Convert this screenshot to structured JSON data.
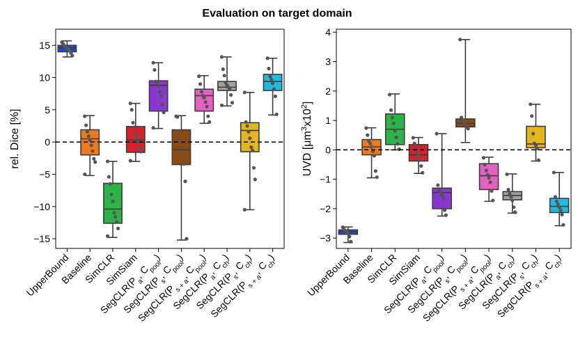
{
  "suptitle": "Evaluation on target domain",
  "chart_data": [
    {
      "type": "box",
      "title": "",
      "xlabel": "",
      "ylabel": "rel. Dice [%]",
      "ylim": [
        -16.5,
        17.5
      ],
      "yticks": [
        -15,
        -10,
        -5,
        0,
        5,
        10,
        15
      ],
      "ytick_labels": [
        "−15",
        "−10",
        "−5",
        "0",
        "5",
        "10",
        "15"
      ],
      "reference_line": 0,
      "categories": [
        {
          "main": "UpperBound",
          "sub": "",
          "sep": "",
          "sub2": "",
          "tail": ""
        },
        {
          "main": "Baseline",
          "sub": "",
          "sep": "",
          "sub2": "",
          "tail": ""
        },
        {
          "main": "SimCLR",
          "sub": "",
          "sep": "",
          "sub2": "",
          "tail": ""
        },
        {
          "main": "SimSiam",
          "sub": "",
          "sep": "",
          "sub2": "",
          "tail": ""
        },
        {
          "main": "SegCLR(P",
          "sub": "a",
          "sep": ", C",
          "sub2": "pool",
          "tail": ")"
        },
        {
          "main": "SegCLR(P",
          "sub": "s",
          "sep": ", C",
          "sub2": "pool",
          "tail": ")"
        },
        {
          "main": "SegCLR(P",
          "sub": "s + a",
          "sep": ", C",
          "sub2": "pool",
          "tail": ")"
        },
        {
          "main": "SegCLR(P",
          "sub": "a",
          "sep": ", C",
          "sub2": "ch",
          "tail": ")"
        },
        {
          "main": "SegCLR(P",
          "sub": "s",
          "sep": ", C",
          "sub2": "ch",
          "tail": ")"
        },
        {
          "main": "SegCLR(P",
          "sub": "s + a",
          "sep": ", C",
          "sub2": "ch",
          "tail": ")"
        }
      ],
      "colors": [
        "#2246c8",
        "#ef7a1d",
        "#2bb447",
        "#d8202a",
        "#8a36d2",
        "#8c4a10",
        "#e660c4",
        "#a0a0a0",
        "#e3b520",
        "#1dbce0"
      ],
      "boxes": [
        {
          "min": 13.2,
          "q1": 14.0,
          "median": 14.6,
          "q3": 15.0,
          "max": 15.7,
          "points": [
            15.5,
            15.2,
            14.9,
            14.7,
            14.6,
            14.4,
            14.2,
            13.8,
            13.4
          ]
        },
        {
          "min": -5.2,
          "q1": -2.0,
          "median": 0.5,
          "q3": 1.9,
          "max": 4.1,
          "points": [
            4.0,
            2.6,
            1.6,
            0.9,
            0.3,
            -0.5,
            -1.4,
            -2.6,
            -3.1,
            -5.0
          ]
        },
        {
          "min": -14.8,
          "q1": -12.6,
          "median": -10.4,
          "q3": -6.4,
          "max": -3.0,
          "points": [
            -3.0,
            -5.4,
            -6.5,
            -8.1,
            -9.2,
            -11.0,
            -11.6,
            -12.4,
            -13.4,
            -14.6
          ]
        },
        {
          "min": -3.0,
          "q1": -1.6,
          "median": 0.3,
          "q3": 2.4,
          "max": 6.0,
          "points": [
            6.0,
            5.0,
            3.0,
            2.3,
            1.2,
            0.6,
            0.0,
            -1.0,
            -1.5,
            -2.9
          ]
        },
        {
          "min": 2.1,
          "q1": 4.8,
          "median": 8.8,
          "q3": 9.5,
          "max": 12.3,
          "points": [
            12.3,
            11.2,
            9.4,
            9.1,
            8.6,
            7.8,
            7.1,
            5.8,
            4.6,
            2.2
          ]
        },
        {
          "min": -15.2,
          "q1": -3.5,
          "median": -1.2,
          "q3": 1.9,
          "max": 4.1,
          "points": [
            4.0,
            3.9,
            1.7,
            0.3,
            -0.9,
            -1.8,
            -3.4,
            -6.1,
            -15.0
          ]
        },
        {
          "min": 2.9,
          "q1": 4.8,
          "median": 7.2,
          "q3": 8.2,
          "max": 10.3,
          "points": [
            10.2,
            9.0,
            7.8,
            7.2,
            6.9,
            6.2,
            5.5,
            4.0,
            3.1
          ]
        },
        {
          "min": 5.6,
          "q1": 8.0,
          "median": 8.5,
          "q3": 9.4,
          "max": 13.2,
          "points": [
            13.2,
            11.3,
            10.3,
            9.2,
            8.8,
            8.5,
            8.3,
            7.3,
            6.1,
            5.7
          ]
        },
        {
          "min": -10.5,
          "q1": -1.5,
          "median": 1.8,
          "q3": 3.0,
          "max": 7.7,
          "points": [
            7.7,
            3.1,
            2.5,
            1.6,
            0.6,
            -0.8,
            -1.3,
            -4.0,
            -5.8,
            -10.5
          ]
        },
        {
          "min": 4.2,
          "q1": 8.0,
          "median": 9.4,
          "q3": 10.5,
          "max": 13.0,
          "points": [
            13.0,
            11.4,
            10.2,
            9.7,
            9.1,
            8.2,
            7.1,
            4.3
          ]
        }
      ]
    },
    {
      "type": "box",
      "title": "",
      "xlabel": "",
      "ylabel": "UVD [μm³x10²]",
      "ylabel_parts": {
        "main": "UVD [μm",
        "sup1": "3",
        "mid": "x10",
        "sup2": "2",
        "tail": "]"
      },
      "ylim": [
        -3.35,
        4.1
      ],
      "yticks": [
        -3,
        -2,
        -1,
        0,
        1,
        2,
        3,
        4
      ],
      "ytick_labels": [
        "−3",
        "−2",
        "−1",
        "0",
        "1",
        "2",
        "3",
        "4"
      ],
      "reference_line": 0,
      "categories": [
        {
          "main": "UpperBound",
          "sub": "",
          "sep": "",
          "sub2": "",
          "tail": ""
        },
        {
          "main": "Baseline",
          "sub": "",
          "sep": "",
          "sub2": "",
          "tail": ""
        },
        {
          "main": "SimCLR",
          "sub": "",
          "sep": "",
          "sub2": "",
          "tail": ""
        },
        {
          "main": "SimSiam",
          "sub": "",
          "sep": "",
          "sub2": "",
          "tail": ""
        },
        {
          "main": "SegCLR(P",
          "sub": "a",
          "sep": ", C",
          "sub2": "pool",
          "tail": ")"
        },
        {
          "main": "SegCLR(P",
          "sub": "s",
          "sep": ", C",
          "sub2": "pool",
          "tail": ")"
        },
        {
          "main": "SegCLR(P",
          "sub": "s + a",
          "sep": ", C",
          "sub2": "pool",
          "tail": ")"
        },
        {
          "main": "SegCLR(P",
          "sub": "a",
          "sep": ", C",
          "sub2": "ch",
          "tail": ")"
        },
        {
          "main": "SegCLR(P",
          "sub": "s",
          "sep": ", C",
          "sub2": "ch",
          "tail": ")"
        },
        {
          "main": "SegCLR(P",
          "sub": "s + a",
          "sep": ", C",
          "sub2": "ch",
          "tail": ")"
        }
      ],
      "colors": [
        "#2246c8",
        "#ef7a1d",
        "#2bb447",
        "#d8202a",
        "#8a36d2",
        "#8c4a10",
        "#e660c4",
        "#a0a0a0",
        "#e3b520",
        "#1dbce0"
      ],
      "boxes": [
        {
          "min": -3.15,
          "q1": -2.87,
          "median": -2.78,
          "q3": -2.72,
          "max": -2.62,
          "points": [
            -2.63,
            -2.7,
            -2.75,
            -2.79,
            -2.85,
            -2.95,
            -3.12
          ]
        },
        {
          "min": -0.95,
          "q1": -0.17,
          "median": 0.1,
          "q3": 0.35,
          "max": 0.75,
          "points": [
            0.74,
            0.5,
            0.3,
            0.22,
            0.1,
            -0.05,
            -0.2,
            -0.72,
            -0.93
          ]
        },
        {
          "min": 0.0,
          "q1": 0.18,
          "median": 0.7,
          "q3": 1.22,
          "max": 1.9,
          "points": [
            1.88,
            1.35,
            1.1,
            0.9,
            0.65,
            0.42,
            0.2,
            0.02
          ]
        },
        {
          "min": -0.8,
          "q1": -0.38,
          "median": -0.17,
          "q3": 0.18,
          "max": 0.42,
          "points": [
            0.41,
            0.22,
            0.05,
            -0.1,
            -0.2,
            -0.35,
            -0.55,
            -0.78
          ]
        },
        {
          "min": -2.25,
          "q1": -2.0,
          "median": -1.45,
          "q3": -1.3,
          "max": 0.55,
          "points": [
            0.55,
            -1.2,
            -1.38,
            -1.45,
            -1.55,
            -1.65,
            -2.05,
            -2.22
          ]
        },
        {
          "min": 0.25,
          "q1": 0.78,
          "median": 0.9,
          "q3": 1.05,
          "max": 3.75,
          "points": [
            3.75,
            1.1,
            1.0,
            0.92,
            0.85,
            0.78,
            0.72
          ]
        },
        {
          "min": -1.75,
          "q1": -1.35,
          "median": -0.88,
          "q3": -0.47,
          "max": -0.25,
          "points": [
            -0.27,
            -0.5,
            -0.7,
            -0.85,
            -0.95,
            -1.1,
            -1.4,
            -1.72
          ]
        },
        {
          "min": -2.15,
          "q1": -1.7,
          "median": -1.55,
          "q3": -1.42,
          "max": -0.82,
          "points": [
            -0.83,
            -1.35,
            -1.5,
            -1.6,
            -1.72,
            -1.95,
            -2.12
          ]
        },
        {
          "min": -0.38,
          "q1": 0.07,
          "median": 0.2,
          "q3": 0.8,
          "max": 1.55,
          "points": [
            1.55,
            1.15,
            0.55,
            0.22,
            0.15,
            0.05,
            -0.35
          ]
        },
        {
          "min": -2.58,
          "q1": -2.13,
          "median": -1.92,
          "q3": -1.65,
          "max": -0.77,
          "points": [
            -0.77,
            -1.6,
            -1.75,
            -1.85,
            -1.95,
            -2.05,
            -2.2,
            -2.55
          ]
        }
      ]
    }
  ]
}
